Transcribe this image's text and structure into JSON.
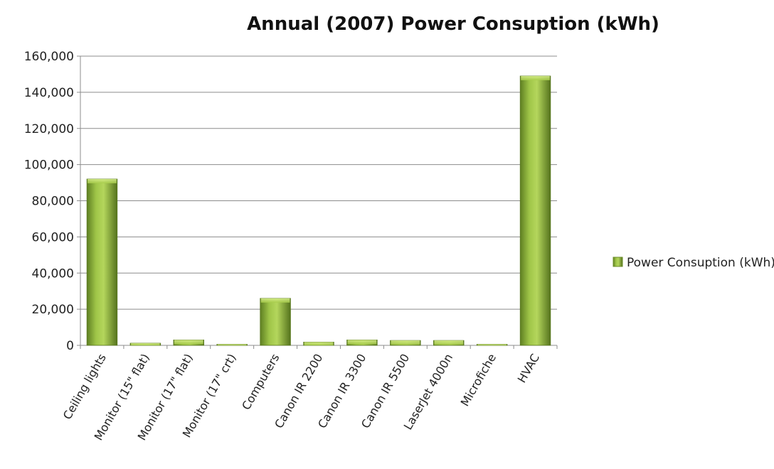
{
  "chart_data": {
    "type": "bar",
    "title": "Annual (2007) Power Consuption (kWh)",
    "xlabel": "",
    "ylabel": "",
    "ylim": [
      0,
      160000
    ],
    "yticks": [
      0,
      20000,
      40000,
      60000,
      80000,
      100000,
      120000,
      140000,
      160000
    ],
    "ytick_labels": [
      "0",
      "20,000",
      "40,000",
      "60,000",
      "80,000",
      "100,000",
      "120,000",
      "140,000",
      "160,000"
    ],
    "grid": true,
    "legend_position": "right",
    "categories": [
      "Ceiling lights",
      "Monitor (15\" flat)",
      "Monitor (17\" flat)",
      "Monitor (17\" crt)",
      "Computers",
      "Canon IR 2200",
      "Canon IR 3300",
      "Canon IR 5500",
      "LaserJet 4000n",
      "Microfiche",
      "HVAC"
    ],
    "series": [
      {
        "name": "Power Consuption (kWh)",
        "color": "#8db33a",
        "values": [
          92000,
          1200,
          3000,
          300,
          26000,
          1800,
          3000,
          2700,
          2700,
          200,
          149000
        ]
      }
    ]
  }
}
